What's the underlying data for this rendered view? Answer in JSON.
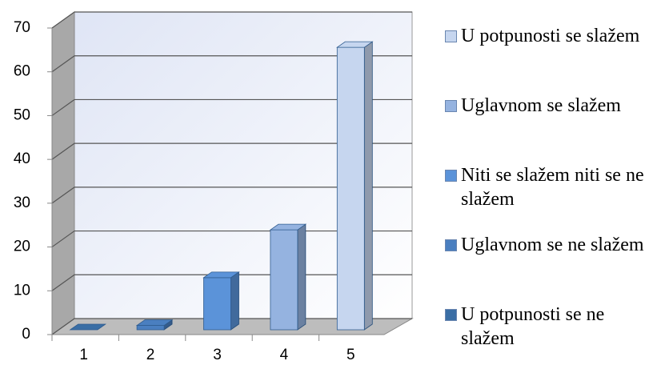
{
  "chart_data": {
    "type": "bar3d",
    "categories": [
      "1",
      "2",
      "3",
      "4",
      "5"
    ],
    "series": [
      {
        "name": "U potpunosti se slažem",
        "color": "#c6d6ef",
        "values": [
          null,
          null,
          null,
          null,
          65
        ]
      },
      {
        "name": "Uglavnom se slažem",
        "color": "#95b3e0",
        "values": [
          null,
          null,
          null,
          23,
          null
        ]
      },
      {
        "name": "Niti se slažem niti se ne slažem",
        "color": "#5b93d9",
        "values": [
          null,
          null,
          12,
          null,
          null
        ]
      },
      {
        "name": "Uglavnom se ne slažem",
        "color": "#4a7fc0",
        "values": [
          null,
          1,
          null,
          null,
          null
        ]
      },
      {
        "name": "U potpunosti se ne slažem",
        "color": "#3a6ea5",
        "values": [
          0,
          null,
          null,
          null,
          null
        ]
      }
    ],
    "ylim": [
      0,
      70
    ],
    "yticks": [
      0,
      10,
      20,
      30,
      40,
      50,
      60,
      70
    ],
    "grid": true,
    "legend": "right"
  }
}
